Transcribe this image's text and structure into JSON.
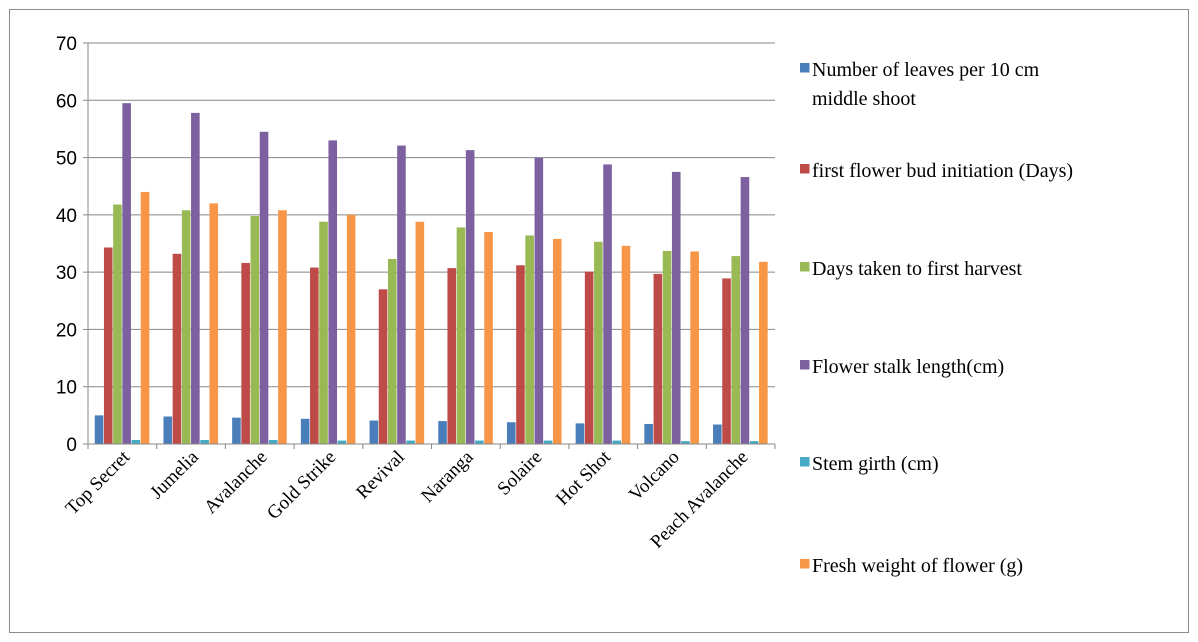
{
  "chart_data": {
    "type": "bar",
    "categories": [
      "Top Secret",
      "Jumelia",
      "Avalanche",
      "Gold Strike",
      "Revival",
      "Naranga",
      "Solaire",
      "Hot Shot",
      "Volcano",
      "Peach Avalanche"
    ],
    "series": [
      {
        "name": "Number of  leaves per 10 cm middle shoot",
        "legend_lines": [
          "Number of  leaves per 10 cm",
          "middle shoot"
        ],
        "color": "#4a7ebb",
        "values": [
          5.0,
          4.8,
          4.6,
          4.4,
          4.1,
          4.0,
          3.8,
          3.6,
          3.5,
          3.4
        ]
      },
      {
        "name": "first flower bud initiation (Days)",
        "legend_lines": [
          "first flower bud initiation (Days)"
        ],
        "color": "#be4b48",
        "values": [
          34.3,
          33.2,
          31.6,
          30.8,
          27.0,
          30.7,
          31.2,
          30.1,
          29.7,
          28.9
        ]
      },
      {
        "name": "Days taken to first  harvest",
        "legend_lines": [
          "Days taken to first  harvest"
        ],
        "color": "#98b954",
        "values": [
          41.8,
          40.8,
          39.8,
          38.8,
          32.3,
          37.8,
          36.4,
          35.3,
          33.7,
          32.8
        ]
      },
      {
        "name": "Flower stalk length(cm)",
        "legend_lines": [
          "Flower stalk length(cm)"
        ],
        "color": "#7d60a0",
        "values": [
          59.5,
          57.8,
          54.5,
          53.0,
          52.1,
          51.3,
          50.0,
          48.8,
          47.5,
          46.6
        ]
      },
      {
        "name": "Stem girth (cm)",
        "legend_lines": [
          "Stem girth (cm)"
        ],
        "color": "#46aac5",
        "values": [
          0.7,
          0.7,
          0.7,
          0.6,
          0.6,
          0.6,
          0.6,
          0.6,
          0.5,
          0.5
        ]
      },
      {
        "name": "Fresh weight of flower (g)",
        "legend_lines": [
          "Fresh weight of flower (g)"
        ],
        "color": "#f79646",
        "values": [
          44.0,
          42.0,
          40.8,
          40.0,
          38.8,
          37.0,
          35.8,
          34.6,
          33.6,
          31.8
        ]
      }
    ],
    "ylim": [
      0,
      70
    ],
    "yticks": [
      0,
      10,
      20,
      30,
      40,
      50,
      60,
      70
    ],
    "title": "",
    "xlabel": "",
    "ylabel": "",
    "grid": true,
    "legend": "right"
  }
}
